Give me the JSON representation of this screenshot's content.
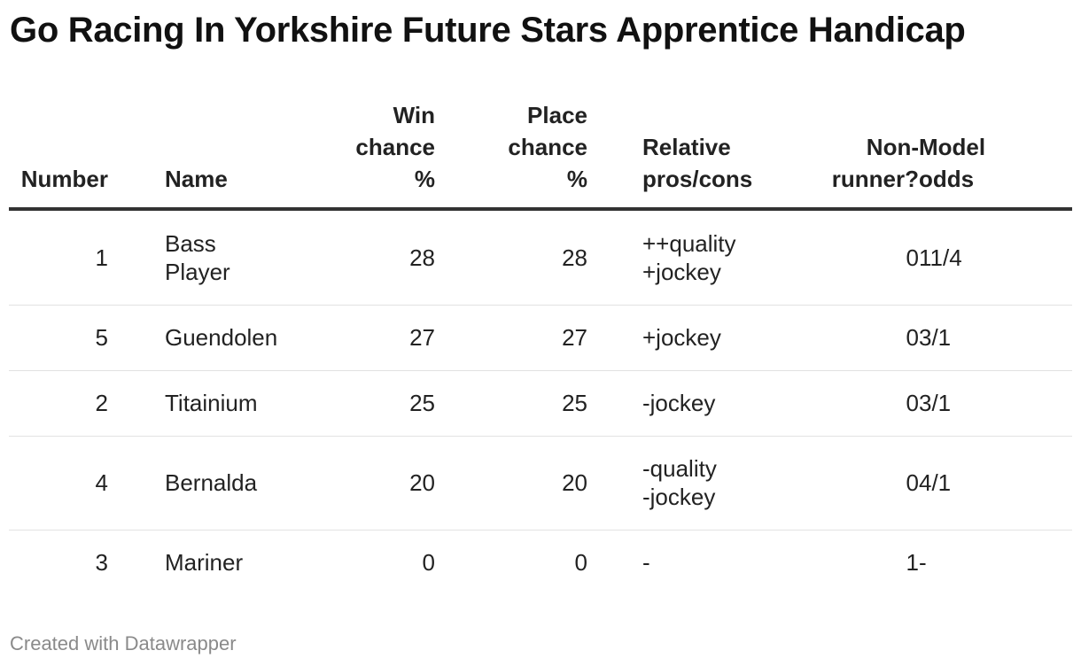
{
  "title": "Go Racing In Yorkshire Future Stars Apprentice Handicap",
  "footer": "Created with Datawrapper",
  "chart_data": {
    "type": "table",
    "title": "Go Racing In Yorkshire Future Stars Apprentice Handicap",
    "columns": [
      {
        "key": "number",
        "lines": [
          "Number"
        ]
      },
      {
        "key": "name",
        "lines": [
          "Name"
        ]
      },
      {
        "key": "win",
        "lines": [
          "Win",
          "chance",
          "%"
        ]
      },
      {
        "key": "place",
        "lines": [
          "Place",
          "chance",
          "%"
        ]
      },
      {
        "key": "proscons",
        "lines": [
          "Relative",
          "pros/cons"
        ]
      },
      {
        "key": "nonrunner",
        "lines": [
          "Non-",
          "runner?"
        ]
      },
      {
        "key": "odds",
        "lines": [
          "Model",
          "odds"
        ]
      }
    ],
    "rows": [
      {
        "number": "1",
        "name": [
          "Bass",
          "Player"
        ],
        "win": "28",
        "place": "28",
        "proscons": [
          "++quality",
          "+jockey"
        ],
        "nonrunner": "0",
        "odds": "11/4"
      },
      {
        "number": "5",
        "name": [
          "Guendolen"
        ],
        "win": "27",
        "place": "27",
        "proscons": [
          "+jockey"
        ],
        "nonrunner": "0",
        "odds": "3/1"
      },
      {
        "number": "2",
        "name": [
          "Titainium"
        ],
        "win": "25",
        "place": "25",
        "proscons": [
          "-jockey"
        ],
        "nonrunner": "0",
        "odds": "3/1"
      },
      {
        "number": "4",
        "name": [
          "Bernalda"
        ],
        "win": "20",
        "place": "20",
        "proscons": [
          "-quality",
          "-jockey"
        ],
        "nonrunner": "0",
        "odds": "4/1"
      },
      {
        "number": "3",
        "name": [
          "Mariner"
        ],
        "win": "0",
        "place": "0",
        "proscons": [
          "-"
        ],
        "nonrunner": "1",
        "odds": "-"
      }
    ]
  }
}
